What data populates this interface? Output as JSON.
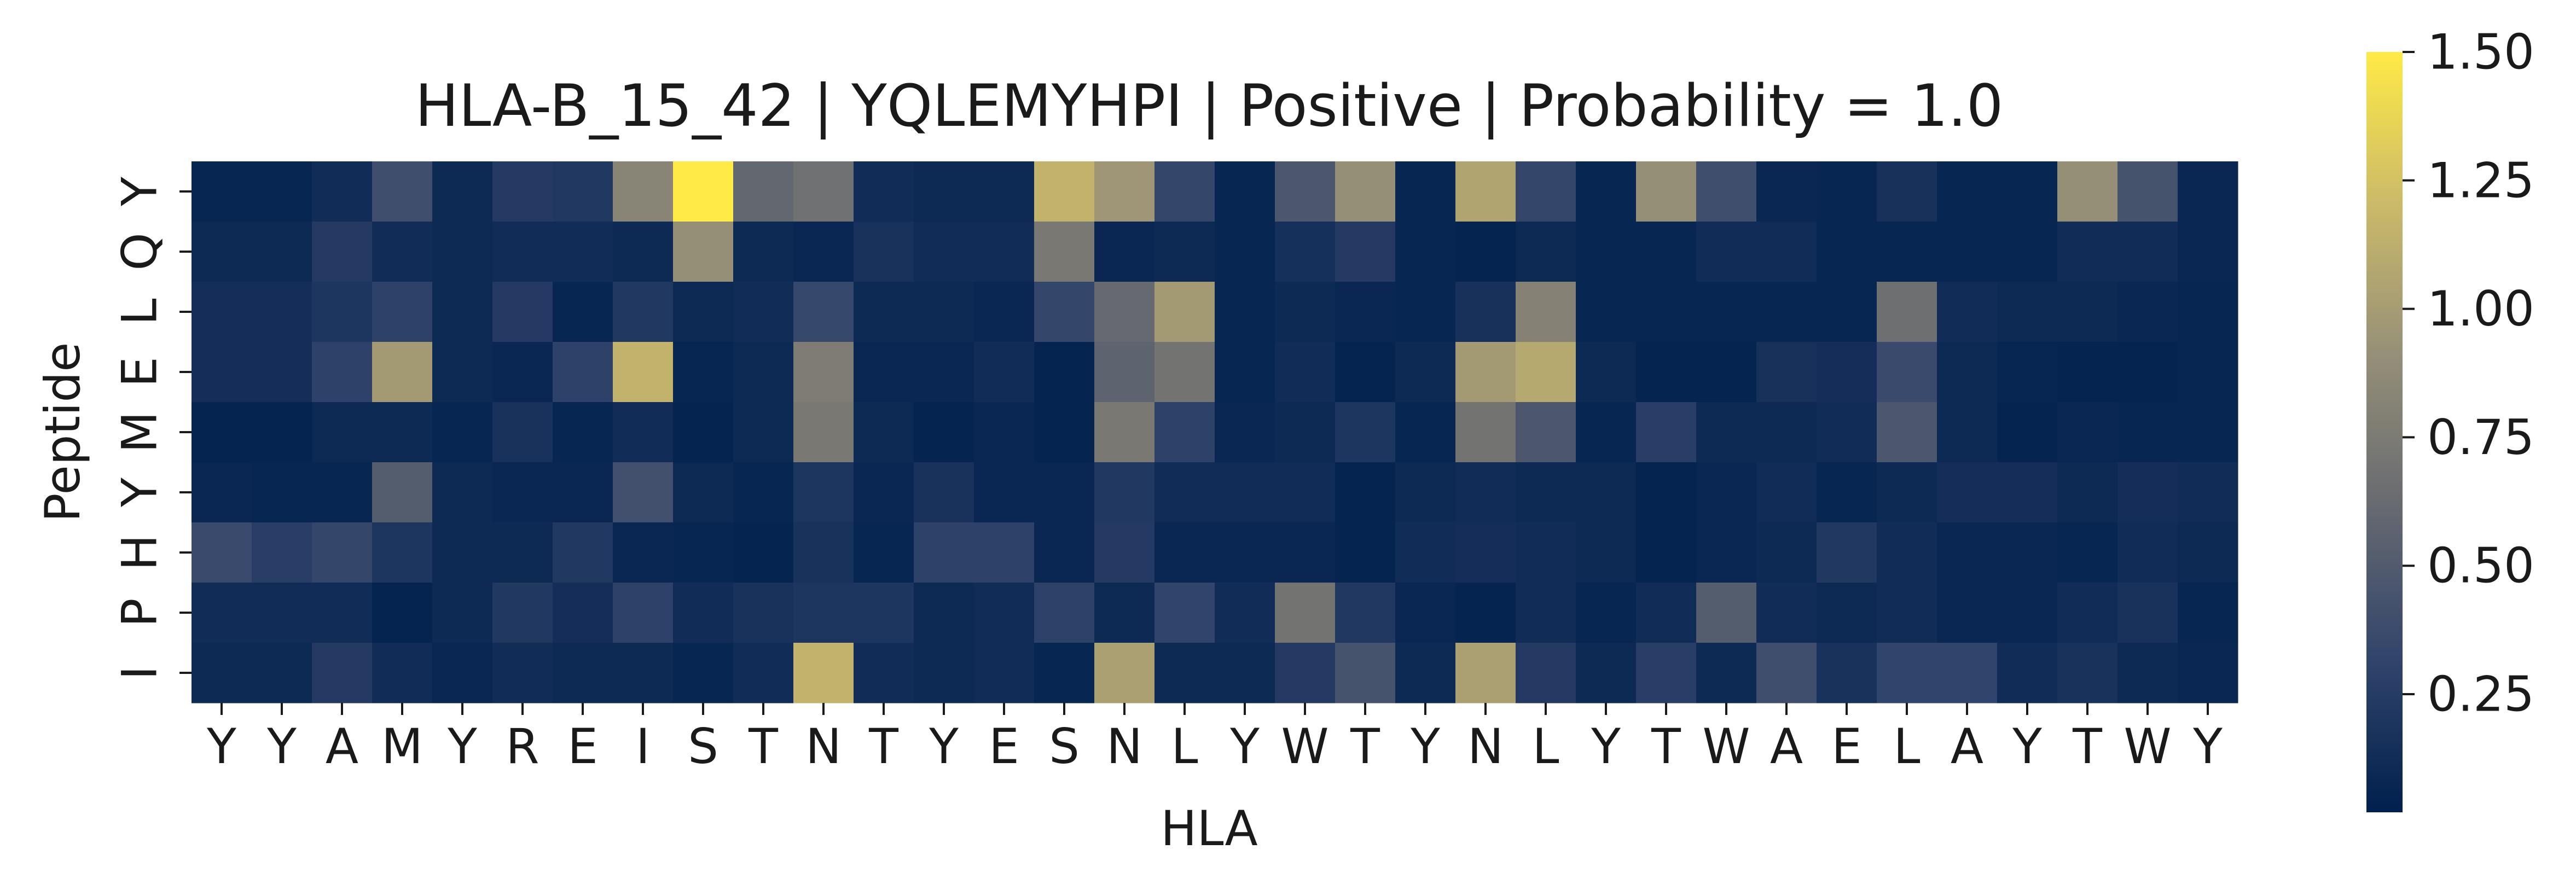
{
  "chart_data": {
    "type": "heatmap",
    "title": "HLA-B_15_42 | YQLEMYHPI | Positive | Probability = 1.0",
    "xlabel": "HLA",
    "ylabel": "Peptide",
    "x_categories": [
      "Y",
      "Y",
      "A",
      "M",
      "Y",
      "R",
      "E",
      "I",
      "S",
      "T",
      "N",
      "T",
      "Y",
      "E",
      "S",
      "N",
      "L",
      "Y",
      "W",
      "T",
      "Y",
      "N",
      "L",
      "Y",
      "T",
      "W",
      "A",
      "E",
      "L",
      "A",
      "Y",
      "T",
      "W",
      "Y"
    ],
    "y_categories": [
      "Y",
      "Q",
      "L",
      "E",
      "M",
      "Y",
      "H",
      "P",
      "I"
    ],
    "values": [
      [
        0.05,
        0.05,
        0.1,
        0.38,
        0.08,
        0.22,
        0.2,
        0.82,
        1.5,
        0.58,
        0.66,
        0.1,
        0.08,
        0.08,
        1.15,
        0.95,
        0.32,
        0.05,
        0.45,
        0.9,
        0.05,
        1.05,
        0.32,
        0.05,
        0.9,
        0.38,
        0.06,
        0.05,
        0.14,
        0.05,
        0.05,
        0.9,
        0.42,
        0.06
      ],
      [
        0.08,
        0.08,
        0.22,
        0.1,
        0.08,
        0.1,
        0.1,
        0.08,
        0.9,
        0.08,
        0.06,
        0.15,
        0.1,
        0.1,
        0.72,
        0.06,
        0.08,
        0.05,
        0.13,
        0.22,
        0.05,
        0.03,
        0.08,
        0.05,
        0.05,
        0.1,
        0.1,
        0.05,
        0.05,
        0.05,
        0.05,
        0.1,
        0.1,
        0.06
      ],
      [
        0.12,
        0.12,
        0.18,
        0.28,
        0.08,
        0.22,
        0.05,
        0.2,
        0.08,
        0.1,
        0.33,
        0.08,
        0.08,
        0.06,
        0.32,
        0.6,
        0.98,
        0.05,
        0.08,
        0.06,
        0.05,
        0.14,
        0.8,
        0.05,
        0.05,
        0.05,
        0.05,
        0.05,
        0.65,
        0.1,
        0.08,
        0.08,
        0.06,
        0.05
      ],
      [
        0.12,
        0.12,
        0.28,
        0.98,
        0.08,
        0.06,
        0.28,
        1.15,
        0.05,
        0.08,
        0.75,
        0.06,
        0.06,
        0.1,
        0.03,
        0.55,
        0.68,
        0.05,
        0.1,
        0.03,
        0.08,
        0.98,
        1.08,
        0.08,
        0.03,
        0.03,
        0.14,
        0.12,
        0.35,
        0.08,
        0.05,
        0.03,
        0.03,
        0.05
      ],
      [
        0.03,
        0.03,
        0.08,
        0.08,
        0.05,
        0.15,
        0.05,
        0.1,
        0.03,
        0.08,
        0.72,
        0.08,
        0.03,
        0.06,
        0.03,
        0.72,
        0.28,
        0.06,
        0.08,
        0.18,
        0.05,
        0.68,
        0.45,
        0.05,
        0.25,
        0.08,
        0.08,
        0.1,
        0.45,
        0.08,
        0.03,
        0.06,
        0.05,
        0.05
      ],
      [
        0.06,
        0.05,
        0.05,
        0.5,
        0.08,
        0.06,
        0.06,
        0.4,
        0.08,
        0.05,
        0.18,
        0.06,
        0.15,
        0.06,
        0.06,
        0.2,
        0.1,
        0.1,
        0.1,
        0.03,
        0.08,
        0.1,
        0.08,
        0.08,
        0.03,
        0.06,
        0.1,
        0.05,
        0.08,
        0.12,
        0.12,
        0.08,
        0.12,
        0.1
      ],
      [
        0.35,
        0.25,
        0.32,
        0.18,
        0.08,
        0.08,
        0.2,
        0.06,
        0.05,
        0.03,
        0.15,
        0.05,
        0.28,
        0.28,
        0.06,
        0.22,
        0.06,
        0.06,
        0.06,
        0.03,
        0.1,
        0.12,
        0.1,
        0.08,
        0.03,
        0.06,
        0.08,
        0.2,
        0.1,
        0.06,
        0.06,
        0.05,
        0.1,
        0.08
      ],
      [
        0.1,
        0.1,
        0.1,
        0.03,
        0.08,
        0.2,
        0.12,
        0.28,
        0.1,
        0.15,
        0.18,
        0.18,
        0.08,
        0.1,
        0.28,
        0.08,
        0.3,
        0.1,
        0.68,
        0.2,
        0.06,
        0.03,
        0.1,
        0.05,
        0.1,
        0.5,
        0.1,
        0.08,
        0.1,
        0.06,
        0.06,
        0.1,
        0.15,
        0.05
      ],
      [
        0.08,
        0.08,
        0.22,
        0.1,
        0.06,
        0.1,
        0.08,
        0.08,
        0.05,
        0.1,
        1.15,
        0.1,
        0.08,
        0.1,
        0.05,
        1.02,
        0.08,
        0.08,
        0.22,
        0.42,
        0.08,
        1.02,
        0.22,
        0.08,
        0.25,
        0.08,
        0.38,
        0.15,
        0.3,
        0.3,
        0.1,
        0.15,
        0.08,
        0.06
      ]
    ],
    "colormap": "cividis",
    "colors": [
      "#00204d",
      "#31446b",
      "#666970",
      "#958f78",
      "#cbba69",
      "#ffea46"
    ],
    "vmin": 0.0,
    "vmax": 1.5,
    "colorbar_ticks": [
      "0.25",
      "0.50",
      "0.75",
      "1.00",
      "1.25",
      "1.50"
    ],
    "colorbar_tick_values": [
      0.25,
      0.5,
      0.75,
      1.0,
      1.25,
      1.5
    ]
  }
}
